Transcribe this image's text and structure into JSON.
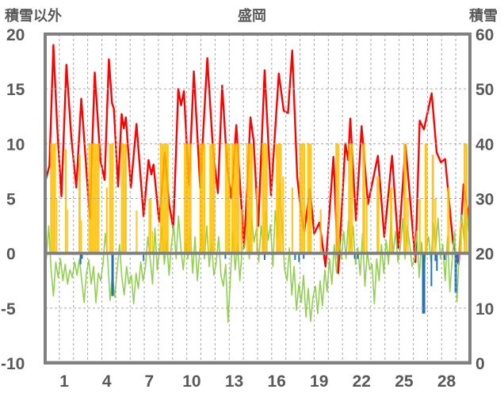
{
  "header": {
    "left_axis_title": "積雪以外",
    "chart_title": "盛岡",
    "right_axis_title": "積雪"
  },
  "chart_data": {
    "type": "line",
    "title": "盛岡",
    "x_axis": {
      "unit": "day-of-month",
      "min": 0,
      "max": 30,
      "gridline_interval": 1,
      "tick_labels": [
        "1",
        "4",
        "7",
        "10",
        "13",
        "16",
        "19",
        "22",
        "25",
        "28"
      ],
      "tick_label_days": [
        1,
        4,
        7,
        10,
        13,
        16,
        19,
        22,
        25,
        28
      ]
    },
    "left_axis": {
      "label": "積雪以外",
      "min": -10,
      "max": 20,
      "ticks": [
        20,
        15,
        10,
        5,
        0,
        -5,
        -10
      ],
      "dashed_gridlines_at": [
        15,
        10,
        5,
        -5
      ],
      "zero_line": 0
    },
    "right_axis": {
      "label": "積雪",
      "min": 0,
      "max": 60,
      "ticks": [
        60,
        50,
        40,
        30,
        20,
        10,
        0
      ]
    },
    "colors": {
      "red_line": "#FF0000",
      "green_line": "#92D050",
      "orange_bars": "#FFC000",
      "blue_bars": "#2272B5",
      "purple_line": "#7030A0",
      "frame": "#808080",
      "gridline": "#A6A6A6",
      "text": "#595959"
    },
    "series": [
      {
        "name": "red-line",
        "type": "line",
        "axis": "left",
        "color_key": "red_line",
        "points": [
          [
            0,
            6.5
          ],
          [
            0.3,
            8.0
          ],
          [
            0.58,
            19.0
          ],
          [
            0.85,
            11.5
          ],
          [
            1.15,
            5.2
          ],
          [
            1.5,
            17.2
          ],
          [
            1.85,
            10.5
          ],
          [
            2.2,
            6.0
          ],
          [
            2.55,
            14.1
          ],
          [
            2.85,
            8.7
          ],
          [
            3.15,
            3.2
          ],
          [
            3.5,
            16.5
          ],
          [
            3.9,
            8.5
          ],
          [
            4.2,
            6.7
          ],
          [
            4.5,
            17.7
          ],
          [
            4.72,
            13.7
          ],
          [
            4.85,
            13.2
          ],
          [
            5.15,
            6.1
          ],
          [
            5.4,
            12.7
          ],
          [
            5.55,
            11.4
          ],
          [
            5.7,
            12.4
          ],
          [
            6.05,
            6.0
          ],
          [
            6.45,
            11.8
          ],
          [
            6.95,
            3.4
          ],
          [
            7.3,
            8.5
          ],
          [
            7.5,
            7.2
          ],
          [
            7.65,
            8.1
          ],
          [
            8.05,
            2.9
          ],
          [
            8.45,
            9.2
          ],
          [
            8.75,
            4.5
          ],
          [
            9.05,
            2.3
          ],
          [
            9.4,
            15.0
          ],
          [
            9.6,
            13.5
          ],
          [
            9.8,
            14.8
          ],
          [
            10.15,
            6.2
          ],
          [
            10.5,
            16.6
          ],
          [
            10.95,
            6.0
          ],
          [
            11.45,
            17.8
          ],
          [
            11.85,
            9.5
          ],
          [
            12.2,
            5.5
          ],
          [
            12.5,
            15.3
          ],
          [
            12.85,
            8.0
          ],
          [
            13.15,
            5.0
          ],
          [
            13.5,
            11.7
          ],
          [
            14.05,
            0.5
          ],
          [
            14.5,
            12.4
          ],
          [
            14.72,
            10.3
          ],
          [
            15.05,
            2.5
          ],
          [
            15.5,
            16.7
          ],
          [
            15.95,
            5.3
          ],
          [
            16.5,
            16.4
          ],
          [
            16.85,
            13.0
          ],
          [
            17.15,
            12.8
          ],
          [
            17.45,
            18.5
          ],
          [
            17.8,
            7.0
          ],
          [
            18.05,
            4.0
          ],
          [
            18.3,
            2.0
          ],
          [
            18.7,
            5.9
          ],
          [
            19.0,
            1.8
          ],
          [
            19.37,
            2.8
          ],
          [
            19.8,
            -1.2
          ],
          [
            20.36,
            8.8
          ],
          [
            20.7,
            -1.8
          ],
          [
            21.2,
            10.0
          ],
          [
            21.4,
            8.5
          ],
          [
            21.55,
            12.3
          ],
          [
            21.95,
            3.0
          ],
          [
            22.35,
            11.6
          ],
          [
            22.8,
            4.5
          ],
          [
            23.5,
            8.9
          ],
          [
            23.95,
            1.5
          ],
          [
            24.5,
            8.9
          ],
          [
            24.95,
            0.5
          ],
          [
            25.45,
            9.9
          ],
          [
            25.9,
            3.0
          ],
          [
            26.15,
            -0.8
          ],
          [
            26.45,
            12.1
          ],
          [
            26.75,
            11.3
          ],
          [
            27.3,
            14.6
          ],
          [
            27.65,
            9.2
          ],
          [
            27.95,
            8.3
          ],
          [
            28.25,
            8.6
          ],
          [
            28.8,
            1.0
          ],
          [
            29.2,
            -1.0
          ],
          [
            29.55,
            6.3
          ],
          [
            29.8,
            4.2
          ],
          [
            30,
            2.7
          ]
        ]
      },
      {
        "name": "green-line",
        "type": "line",
        "axis": "left",
        "color_key": "green_line",
        "samples_per_day": 6,
        "values": [
          -0.5,
          2.5,
          -1.5,
          -3.9,
          -0.8,
          -2.2,
          -0.5,
          -2.5,
          -1.0,
          -2.8,
          -1.5,
          -2.2,
          -0.8,
          -2.0,
          -0.5,
          -2.5,
          -4.5,
          -1.8,
          -0.6,
          -2.8,
          -1.2,
          -4.5,
          -1.8,
          -2.5,
          -1.0,
          1.8,
          -0.5,
          -4.3,
          -2.0,
          -4.0,
          -1.5,
          0.8,
          -2.2,
          -3.8,
          -1.2,
          -2.8,
          -2.0,
          -4.6,
          -1.8,
          -3.2,
          -0.8,
          -2.5,
          -1.2,
          1.5,
          -0.5,
          -2.8,
          2.3,
          -1.5,
          0.5,
          2.4,
          -1.0,
          1.2,
          -2.0,
          0.8,
          2.5,
          -0.5,
          3.4,
          0.5,
          -1.5,
          1.0,
          -0.5,
          2.2,
          -1.8,
          1.5,
          -2.5,
          0.3,
          1.8,
          -0.5,
          2.5,
          -1.2,
          0.8,
          -2.0,
          -0.8,
          1.5,
          -2.0,
          -3.0,
          -1.0,
          -6.3,
          -2.2,
          2.0,
          -1.5,
          0.8,
          -2.5,
          0.5,
          0.5,
          2.8,
          -0.5,
          3.2,
          1.0,
          2.2,
          -0.8,
          2.5,
          0.3,
          3.8,
          1.2,
          2.6,
          -1.2,
          3.9,
          1.5,
          6.4,
          2.0,
          -1.5,
          -2.5,
          0.5,
          -3.8,
          -1.2,
          -5.2,
          -2.8,
          -4.5,
          -2.0,
          -5.8,
          -3.2,
          -6.2,
          -4.0,
          -3.0,
          -5.5,
          -2.5,
          -4.8,
          -1.5,
          -3.5,
          -0.5,
          -2.8,
          0.8,
          -1.8,
          1.5,
          -0.5,
          2.0,
          -0.5,
          3.0,
          0.5,
          2.5,
          -1.0,
          0.5,
          -2.0,
          1.8,
          -3.0,
          0.2,
          -1.5,
          -1.0,
          -4.6,
          -0.5,
          -2.5,
          0.8,
          -1.8,
          1.2,
          -1.0,
          2.8,
          0.0,
          2.0,
          -0.8,
          0.5,
          3.2,
          -0.5,
          2.5,
          0.8,
          -1.2,
          -0.5,
          2.0,
          -2.2,
          1.0,
          -1.5,
          0.5,
          1.5,
          -0.8,
          2.8,
          0.5,
          3.2,
          -0.5,
          0.8,
          -2.5,
          1.5,
          -3.5,
          -0.5,
          2.0,
          -4.4,
          0.5,
          3.5,
          1.2,
          4.5,
          2.0
        ]
      },
      {
        "name": "orange-bars",
        "type": "bar-up",
        "axis": "left",
        "color_key": "orange_bars",
        "bars": [
          [
            0.35,
            0.75,
            10
          ],
          [
            0.78,
            0.85,
            5
          ],
          [
            1.4,
            1.5,
            9.5
          ],
          [
            1.55,
            1.6,
            4
          ],
          [
            2.35,
            2.5,
            9
          ],
          [
            2.52,
            2.57,
            3
          ],
          [
            3.05,
            3.82,
            10
          ],
          [
            4.3,
            4.4,
            6
          ],
          [
            4.5,
            4.8,
            10
          ],
          [
            5.35,
            5.75,
            10
          ],
          [
            6.4,
            6.5,
            3.9
          ],
          [
            7.3,
            7.5,
            5
          ],
          [
            7.55,
            7.6,
            2
          ],
          [
            8.1,
            8.7,
            10
          ],
          [
            9.8,
            10.3,
            10
          ],
          [
            10.9,
            11.3,
            10
          ],
          [
            11.6,
            12.0,
            10
          ],
          [
            12.7,
            13.05,
            10
          ],
          [
            13.15,
            13.7,
            10
          ],
          [
            13.8,
            13.9,
            4
          ],
          [
            14.2,
            14.65,
            10
          ],
          [
            14.9,
            15.0,
            6
          ],
          [
            15.3,
            15.7,
            10
          ],
          [
            16.3,
            16.7,
            10
          ],
          [
            16.75,
            16.85,
            7
          ],
          [
            17.4,
            17.5,
            6
          ],
          [
            17.95,
            18.35,
            10
          ],
          [
            18.5,
            18.8,
            10
          ],
          [
            19.4,
            19.5,
            4
          ],
          [
            20.5,
            20.75,
            10
          ],
          [
            21.4,
            21.7,
            10
          ],
          [
            22.4,
            22.6,
            10
          ],
          [
            22.65,
            22.75,
            5
          ],
          [
            23.4,
            23.6,
            7
          ],
          [
            24.35,
            24.5,
            6
          ],
          [
            25.3,
            25.5,
            10
          ],
          [
            25.55,
            25.65,
            5
          ],
          [
            26.4,
            26.5,
            5
          ],
          [
            26.8,
            27.0,
            10
          ],
          [
            27.3,
            27.45,
            9
          ],
          [
            27.5,
            27.6,
            5
          ],
          [
            28.4,
            28.55,
            6
          ],
          [
            29.3,
            29.4,
            3
          ],
          [
            29.55,
            29.8,
            10
          ]
        ]
      },
      {
        "name": "blue-bars",
        "type": "bar-down",
        "axis": "left",
        "color_key": "blue_bars",
        "bars": [
          [
            2.5,
            -1.0,
            2
          ],
          [
            2.6,
            -0.5,
            2
          ],
          [
            4.76,
            -3.9,
            3
          ],
          [
            6.95,
            -0.7,
            2
          ],
          [
            12.73,
            -0.5,
            2
          ],
          [
            15.5,
            -0.6,
            2
          ],
          [
            17.65,
            -0.6,
            2
          ],
          [
            17.93,
            -0.8,
            2
          ],
          [
            18.26,
            -0.5,
            2
          ],
          [
            21.86,
            -0.5,
            2
          ],
          [
            22.08,
            -0.5,
            2
          ],
          [
            26.73,
            -5.5,
            4
          ],
          [
            27.28,
            -3.0,
            2
          ],
          [
            27.56,
            -0.7,
            2
          ],
          [
            27.67,
            -1.6,
            2
          ],
          [
            28.22,
            -0.6,
            2
          ],
          [
            29.0,
            -3.6,
            3
          ],
          [
            29.16,
            -0.8,
            2
          ]
        ]
      },
      {
        "name": "purple-line",
        "type": "constant-line",
        "axis": "right",
        "color_key": "purple_line",
        "value": 0
      }
    ]
  }
}
